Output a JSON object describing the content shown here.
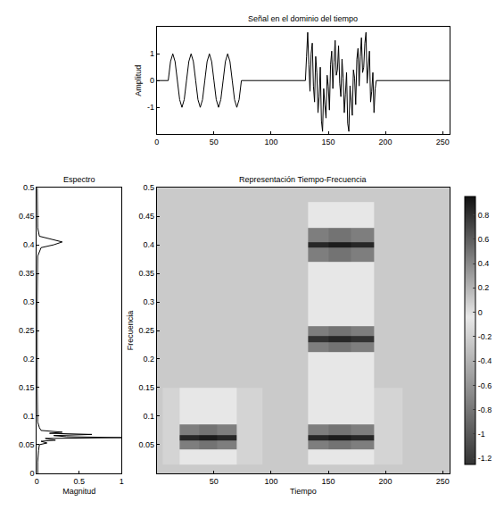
{
  "chart_data": [
    {
      "type": "line",
      "title": "Señal en el dominio del tiempo",
      "y_label": "Amplitud",
      "color": "#000000",
      "x": [
        0,
        10,
        12,
        14,
        16,
        18,
        20,
        22,
        24,
        26,
        28,
        30,
        32,
        34,
        36,
        38,
        40,
        42,
        44,
        46,
        48,
        50,
        52,
        54,
        56,
        58,
        60,
        62,
        64,
        66,
        68,
        70,
        72,
        74,
        130,
        131,
        132,
        133,
        134,
        135,
        136,
        137,
        138,
        139,
        140,
        141,
        142,
        143,
        144,
        145,
        146,
        147,
        148,
        149,
        150,
        151,
        152,
        153,
        154,
        155,
        156,
        157,
        158,
        159,
        160,
        161,
        162,
        163,
        164,
        165,
        166,
        167,
        168,
        169,
        170,
        171,
        172,
        173,
        174,
        175,
        176,
        177,
        178,
        179,
        180,
        181,
        182,
        183,
        184,
        185,
        186,
        187,
        188,
        189,
        190,
        191,
        192,
        256
      ],
      "values": [
        0,
        0,
        0.71,
        1,
        0.71,
        0,
        -0.71,
        -1,
        -0.71,
        0,
        0.71,
        1,
        0.71,
        0,
        -0.71,
        -1,
        -0.71,
        0,
        0.71,
        1,
        0.71,
        0,
        -0.71,
        -1,
        -0.71,
        0,
        0.71,
        1,
        0.71,
        0,
        -0.71,
        -1,
        -0.71,
        0,
        0,
        0.9,
        1.8,
        0.6,
        -0.4,
        1.0,
        1.4,
        -0.2,
        -0.8,
        0.9,
        0.3,
        -1.2,
        -0.6,
        0.5,
        -1.5,
        -1.9,
        -0.3,
        -0.9,
        -1.4,
        0.2,
        -0.2,
        -1.1,
        0.6,
        1.1,
        -0.3,
        0.7,
        1.5,
        0.2,
        0.4,
        1.3,
        -0.1,
        -0.6,
        0.8,
        0.1,
        -1.2,
        -0.5,
        0.3,
        -1.6,
        -1.9,
        -0.2,
        -0.7,
        -1.3,
        0.4,
        0.1,
        -0.9,
        0.8,
        1.2,
        -0.2,
        0.9,
        1.6,
        0.3,
        0.5,
        1.4,
        1.8,
        -0.1,
        0.6,
        1.1,
        -0.8,
        -0.4,
        0.3,
        -1.2,
        -0.3,
        0,
        0
      ],
      "xlim": [
        0,
        256
      ],
      "xticks": [
        0,
        50,
        100,
        150,
        200,
        250
      ],
      "ylim": [
        -2,
        2
      ],
      "yticks": [
        -1,
        0,
        1
      ]
    },
    {
      "type": "line",
      "title": "Espectro",
      "x_label": "Magnitud",
      "color": "#000000",
      "x": [
        0.01,
        0.01,
        0.02,
        0.03,
        0.12,
        0.05,
        0.22,
        0.1,
        1.0,
        0.35,
        0.2,
        0.65,
        0.15,
        0.3,
        0.05,
        0.03,
        0.01,
        0.005,
        0.005,
        0.01,
        0.05,
        0.2,
        0.3,
        0.15,
        0.03,
        0.01,
        0.005
      ],
      "y": [
        0,
        0.02,
        0.04,
        0.05,
        0.053,
        0.056,
        0.058,
        0.061,
        0.0625,
        0.064,
        0.066,
        0.068,
        0.07,
        0.072,
        0.075,
        0.08,
        0.09,
        0.15,
        0.3,
        0.38,
        0.395,
        0.4,
        0.405,
        0.41,
        0.415,
        0.43,
        0.5
      ],
      "xlim": [
        0,
        1
      ],
      "xticks": [
        0,
        0.5,
        1
      ],
      "ylim": [
        0,
        0.5
      ],
      "yticks": [
        0,
        0.05,
        0.1,
        0.15,
        0.2,
        0.25,
        0.3,
        0.35,
        0.4,
        0.45,
        0.5
      ]
    },
    {
      "type": "heatmap",
      "title": "Representación Tiempo-Frecuencia",
      "x_label": "Tiempo",
      "y_label": "Frecuencia",
      "x": [
        0,
        10,
        30,
        45,
        60,
        80,
        105,
        125,
        140,
        160,
        180,
        200,
        230,
        256
      ],
      "y": [
        0,
        0.03,
        0.0525,
        0.0625,
        0.0725,
        0.1,
        0.2,
        0.225,
        0.235,
        0.245,
        0.27,
        0.35,
        0.39,
        0.4,
        0.41,
        0.45,
        0.5
      ],
      "cells": [
        [
          0.1,
          0.1,
          0.1,
          0.1,
          0.1,
          0.1,
          0.1,
          0.1,
          0.1,
          0.1,
          0.1,
          0.1,
          0.1,
          0.1
        ],
        [
          0.1,
          0.05,
          -0.05,
          -0.05,
          -0.05,
          0.05,
          0.1,
          0.1,
          -0.05,
          -0.05,
          -0.05,
          0.05,
          0.1,
          0.1
        ],
        [
          0.1,
          0.05,
          0.45,
          0.5,
          0.45,
          0.05,
          0.1,
          0.1,
          0.45,
          0.5,
          0.45,
          0.05,
          0.1,
          0.1
        ],
        [
          0.1,
          0.05,
          0.85,
          0.9,
          0.85,
          0.05,
          0.1,
          0.1,
          0.85,
          0.9,
          0.85,
          0.05,
          0.1,
          0.1
        ],
        [
          0.1,
          0.05,
          0.45,
          0.5,
          0.45,
          0.05,
          0.1,
          0.1,
          0.45,
          0.5,
          0.45,
          0.05,
          0.1,
          0.1
        ],
        [
          0.1,
          0.05,
          -0.05,
          -0.05,
          -0.05,
          0.05,
          0.1,
          0.1,
          -0.05,
          -0.05,
          -0.05,
          0.05,
          0.1,
          0.1
        ],
        [
          0.1,
          0.1,
          0.1,
          0.1,
          0.1,
          0.1,
          0.1,
          0.1,
          -0.05,
          -0.05,
          -0.05,
          0.1,
          0.1,
          0.1
        ],
        [
          0.1,
          0.1,
          0.1,
          0.1,
          0.1,
          0.1,
          0.1,
          0.1,
          0.45,
          0.5,
          0.45,
          0.1,
          0.1,
          0.1
        ],
        [
          0.1,
          0.1,
          0.1,
          0.1,
          0.1,
          0.1,
          0.1,
          0.1,
          0.8,
          0.85,
          0.8,
          0.1,
          0.1,
          0.1
        ],
        [
          0.1,
          0.1,
          0.1,
          0.1,
          0.1,
          0.1,
          0.1,
          0.1,
          0.45,
          0.5,
          0.45,
          0.1,
          0.1,
          0.1
        ],
        [
          0.1,
          0.1,
          0.1,
          0.1,
          0.1,
          0.1,
          0.1,
          0.1,
          -0.05,
          -0.05,
          -0.05,
          0.1,
          0.1,
          0.1
        ],
        [
          0.1,
          0.1,
          0.1,
          0.1,
          0.1,
          0.1,
          0.1,
          0.1,
          -0.05,
          -0.05,
          -0.05,
          0.1,
          0.1,
          0.1
        ],
        [
          0.1,
          0.1,
          0.1,
          0.1,
          0.1,
          0.1,
          0.1,
          0.1,
          0.45,
          0.5,
          0.45,
          0.1,
          0.1,
          0.1
        ],
        [
          0.1,
          0.1,
          0.1,
          0.1,
          0.1,
          0.1,
          0.1,
          0.1,
          0.85,
          0.9,
          0.85,
          0.1,
          0.1,
          0.1
        ],
        [
          0.1,
          0.1,
          0.1,
          0.1,
          0.1,
          0.1,
          0.1,
          0.1,
          0.45,
          0.5,
          0.45,
          0.1,
          0.1,
          0.1
        ],
        [
          0.1,
          0.1,
          0.1,
          0.1,
          0.1,
          0.1,
          0.1,
          0.1,
          -0.05,
          -0.05,
          -0.05,
          0.1,
          0.1,
          0.1
        ],
        [
          0.1,
          0.1,
          0.1,
          0.1,
          0.1,
          0.1,
          0.1,
          0.1,
          0.1,
          0.1,
          0.1,
          0.1,
          0.1,
          0.1
        ]
      ],
      "colorbar_lim": [
        -1.25,
        0.95
      ],
      "colorbar_ticks": [
        -1.2,
        -1,
        -0.8,
        -0.6,
        -0.4,
        -0.2,
        0,
        0.2,
        0.4,
        0.6,
        0.8
      ],
      "xlim": [
        0,
        256
      ],
      "xticks": [
        50,
        100,
        150,
        200,
        250
      ],
      "ylim": [
        0,
        0.5
      ],
      "yticks": [
        0.05,
        0.1,
        0.15,
        0.2,
        0.25,
        0.3,
        0.35,
        0.4,
        0.45,
        0.5
      ]
    }
  ]
}
